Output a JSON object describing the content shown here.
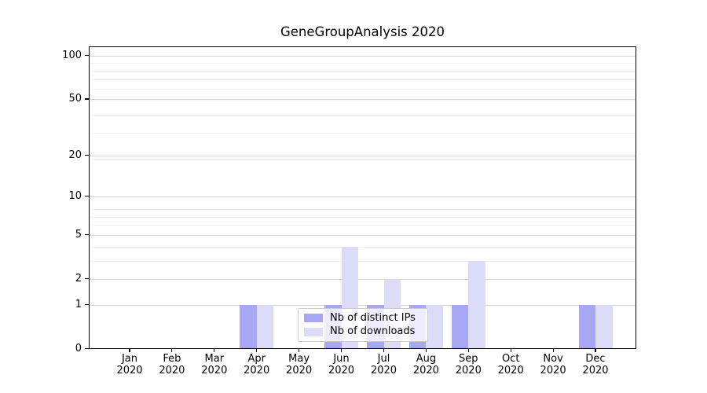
{
  "figure": {
    "title": "GeneGroupAnalysis 2020",
    "background": "#ffffff"
  },
  "chart_data": {
    "type": "bar",
    "title": "GeneGroupAnalysis 2020",
    "categories": [
      "Jan 2020",
      "Feb 2020",
      "Mar 2020",
      "Apr 2020",
      "May 2020",
      "Jun 2020",
      "Jul 2020",
      "Aug 2020",
      "Sep 2020",
      "Oct 2020",
      "Nov 2020",
      "Dec 2020"
    ],
    "series": [
      {
        "name": "Nb of distinct IPs",
        "color": "#a7a7f5",
        "values": [
          0,
          0,
          0,
          1,
          0,
          1,
          1,
          1,
          1,
          0,
          0,
          1
        ]
      },
      {
        "name": "Nb of downloads",
        "color": "#dcdcf9",
        "values": [
          0,
          0,
          0,
          1,
          0,
          4,
          2,
          1,
          3,
          0,
          0,
          1
        ]
      }
    ],
    "xlabel": "",
    "ylabel": "",
    "yticks": [
      0,
      1,
      2,
      5,
      10,
      20,
      50,
      100
    ],
    "scale": "log1p",
    "ylim": [
      0,
      116
    ],
    "grid": "horizontal-major-and-minor",
    "grid_major_color": "#d4d4d4",
    "grid_minor_color": "#f0f0f0",
    "legend_position": "lower center",
    "axis_color": "#000000"
  }
}
